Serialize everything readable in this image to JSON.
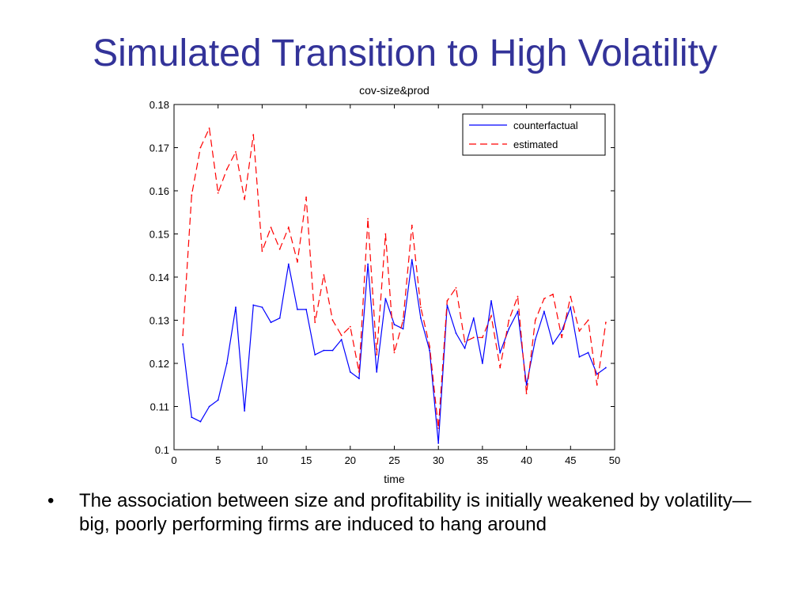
{
  "slide": {
    "title": "Simulated Transition to High Volatility",
    "bullet_marker": "•",
    "bullet_text": "The association between size and profitability is initially weakened by volatility—big, poorly performing firms are induced to hang around"
  },
  "chart_data": {
    "type": "line",
    "title": "cov-size&prod",
    "xlabel": "time",
    "ylabel": "",
    "xlim": [
      0,
      50
    ],
    "ylim": [
      0.1,
      0.18
    ],
    "xticks": [
      0,
      5,
      10,
      15,
      20,
      25,
      30,
      35,
      40,
      45,
      50
    ],
    "yticks": [
      0.1,
      0.11,
      0.12,
      0.13,
      0.14,
      0.15,
      0.16,
      0.17,
      0.18
    ],
    "ytick_labels": [
      "0.1",
      "0.11",
      "0.12",
      "0.13",
      "0.14",
      "0.15",
      "0.16",
      "0.17",
      "0.18"
    ],
    "grid": false,
    "legend_position": "top-right",
    "x": [
      1,
      2,
      3,
      4,
      5,
      6,
      7,
      8,
      9,
      10,
      11,
      12,
      13,
      14,
      15,
      16,
      17,
      18,
      19,
      20,
      21,
      22,
      23,
      24,
      25,
      26,
      27,
      28,
      29,
      30,
      31,
      32,
      33,
      34,
      35,
      36,
      37,
      38,
      39,
      40,
      41,
      42,
      43,
      44,
      45,
      46,
      47,
      48,
      49
    ],
    "series": [
      {
        "name": "counterfactual",
        "color": "#0000ff",
        "style": "solid",
        "values": [
          0.1245,
          0.1075,
          0.1065,
          0.11,
          0.1115,
          0.12,
          0.133,
          0.109,
          0.1335,
          0.133,
          0.1295,
          0.1305,
          0.143,
          0.1325,
          0.1325,
          0.122,
          0.123,
          0.123,
          0.1255,
          0.118,
          0.1165,
          0.143,
          0.118,
          0.135,
          0.129,
          0.128,
          0.144,
          0.1305,
          0.123,
          0.1015,
          0.1335,
          0.127,
          0.1235,
          0.1305,
          0.12,
          0.1345,
          0.1225,
          0.128,
          0.132,
          0.115,
          0.1255,
          0.132,
          0.1245,
          0.1275,
          0.133,
          0.1215,
          0.1225,
          0.1175,
          0.119
        ]
      },
      {
        "name": "estimated",
        "color": "#ff0000",
        "style": "dashed",
        "values": [
          0.1265,
          0.159,
          0.17,
          0.1745,
          0.1595,
          0.165,
          0.169,
          0.158,
          0.173,
          0.146,
          0.1515,
          0.1465,
          0.1515,
          0.1435,
          0.1585,
          0.1295,
          0.1405,
          0.13,
          0.1265,
          0.1285,
          0.118,
          0.1535,
          0.122,
          0.15,
          0.1225,
          0.13,
          0.152,
          0.133,
          0.124,
          0.105,
          0.1345,
          0.1375,
          0.125,
          0.126,
          0.126,
          0.131,
          0.119,
          0.13,
          0.1355,
          0.113,
          0.13,
          0.135,
          0.136,
          0.126,
          0.1355,
          0.1275,
          0.13,
          0.115,
          0.1295
        ]
      }
    ]
  }
}
